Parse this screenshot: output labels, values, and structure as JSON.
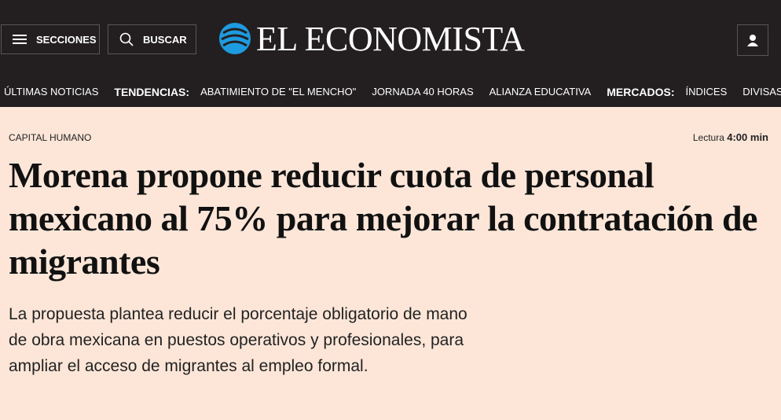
{
  "header": {
    "menu_button": "SECCIONES",
    "search_button": "BUSCAR",
    "logo": "EL ECONOMISTA"
  },
  "nav": {
    "items": [
      "ÚLTIMAS NOTICIAS",
      "TENDENCIAS:",
      "ABATIMIENTO DE \"EL MENCHO\"",
      "JORNADA 40 HORAS",
      "ALIANZA EDUCATIVA",
      "MERCADOS:",
      "ÍNDICES",
      "DIVISAS"
    ]
  },
  "article": {
    "section": "CAPITAL HUMANO",
    "reading_label": "Lectura",
    "reading_time": "4:00 min",
    "title": "Morena propone reducir cuota de personal mexicano al 75% para mejorar la contratación de migrantes",
    "summary": "La propuesta plantea reducir el porcentaje obligatorio de mano de obra mexicana en puestos operativos y profesionales, para ampliar el acceso de migrantes al empleo formal."
  }
}
